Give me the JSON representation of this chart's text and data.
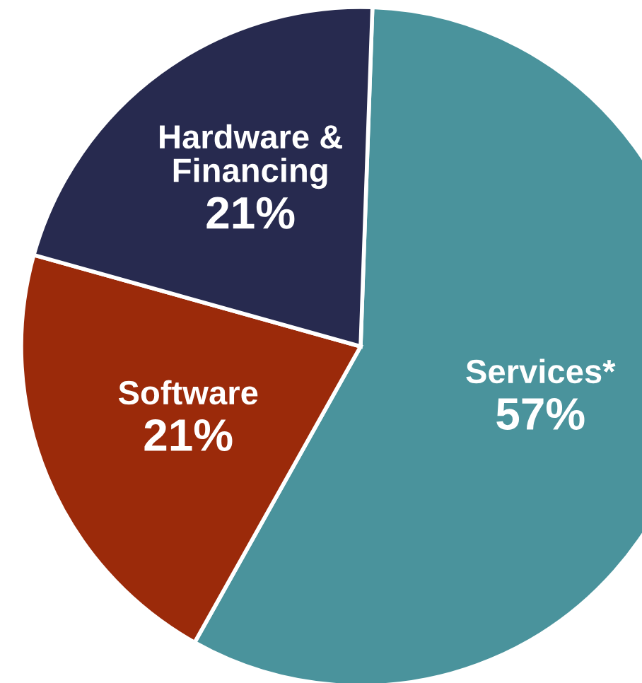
{
  "chart_data": {
    "type": "pie",
    "categories": [
      "Services*",
      "Software",
      "Hardware &\nFinancing"
    ],
    "values": [
      57,
      21,
      21
    ],
    "value_labels": [
      "57%",
      "21%",
      "21%"
    ],
    "colors": [
      "#4a939c",
      "#9b2a0a",
      "#272a4f"
    ]
  }
}
